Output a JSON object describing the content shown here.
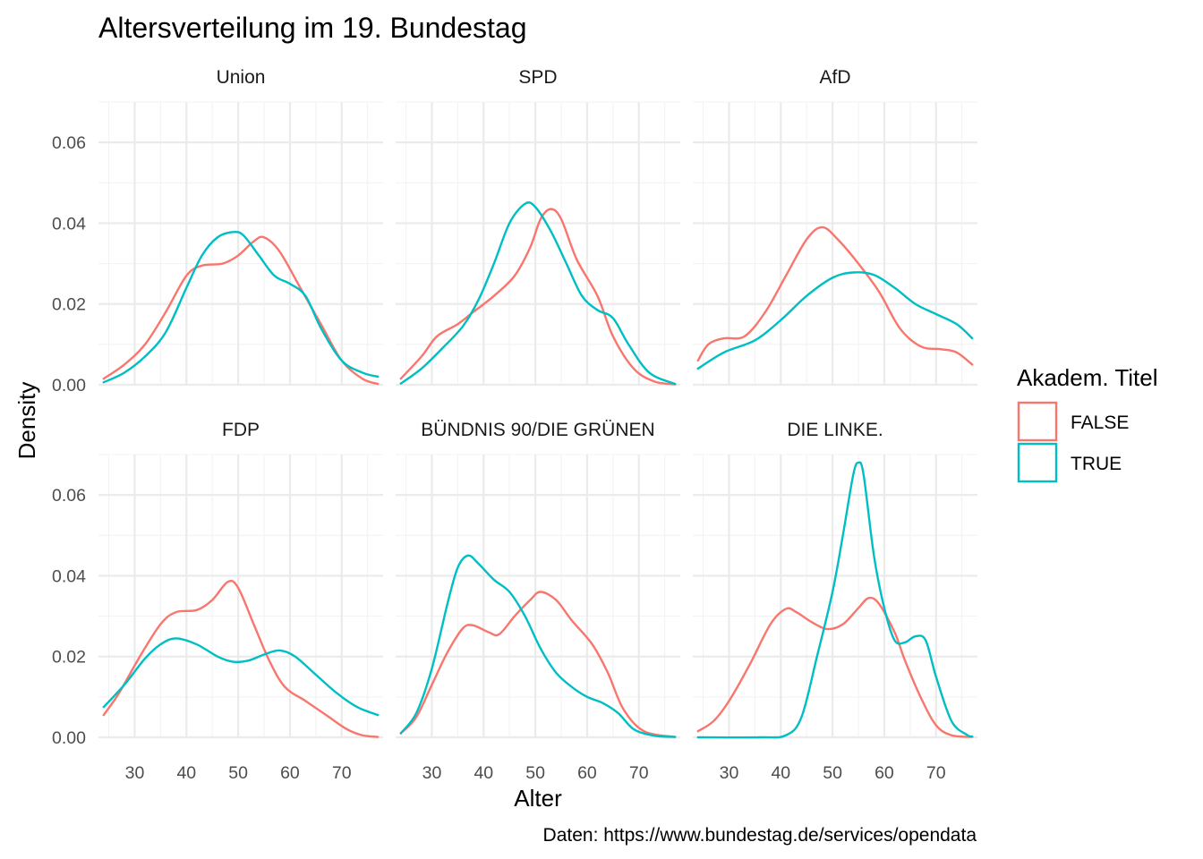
{
  "title": "Altersverteilung im 19. Bundestag",
  "caption": "Daten: https://www.bundestag.de/services/opendata",
  "colors": {
    "FALSE": "#F8766D",
    "TRUE": "#00BFC4"
  },
  "legend": {
    "title": "Akadem. Titel",
    "items": [
      "FALSE",
      "TRUE"
    ]
  },
  "chart_data": {
    "type": "line",
    "xlabel": "Alter",
    "ylabel": "Density",
    "xlim": [
      23,
      78
    ],
    "ylim": [
      0,
      0.07
    ],
    "x_ticks": [
      30,
      40,
      50,
      60,
      70
    ],
    "y_ticks": [
      0.0,
      0.02,
      0.04,
      0.06
    ],
    "y_tick_labels": [
      "0.00",
      "0.02",
      "0.04",
      "0.06"
    ],
    "grid": true,
    "legend_position": "right",
    "facets": [
      {
        "name": "Union",
        "series": [
          {
            "name": "FALSE",
            "points": [
              [
                24,
                0.0015
              ],
              [
                28,
                0.005
              ],
              [
                32,
                0.01
              ],
              [
                36,
                0.018
              ],
              [
                40,
                0.027
              ],
              [
                43,
                0.0295
              ],
              [
                47,
                0.03
              ],
              [
                50,
                0.032
              ],
              [
                53,
                0.0355
              ],
              [
                55,
                0.0365
              ],
              [
                58,
                0.033
              ],
              [
                62,
                0.024
              ],
              [
                66,
                0.015
              ],
              [
                70,
                0.006
              ],
              [
                74,
                0.0015
              ],
              [
                77,
                0.0002
              ]
            ]
          },
          {
            "name": "TRUE",
            "points": [
              [
                24,
                0.0006
              ],
              [
                28,
                0.003
              ],
              [
                32,
                0.007
              ],
              [
                36,
                0.013
              ],
              [
                40,
                0.024
              ],
              [
                43,
                0.032
              ],
              [
                46,
                0.0365
              ],
              [
                49,
                0.0378
              ],
              [
                51,
                0.037
              ],
              [
                54,
                0.032
              ],
              [
                57,
                0.027
              ],
              [
                60,
                0.025
              ],
              [
                63,
                0.022
              ],
              [
                66,
                0.014
              ],
              [
                70,
                0.006
              ],
              [
                74,
                0.003
              ],
              [
                77,
                0.002
              ]
            ]
          }
        ]
      },
      {
        "name": "SPD",
        "series": [
          {
            "name": "FALSE",
            "points": [
              [
                24,
                0.0015
              ],
              [
                28,
                0.007
              ],
              [
                31,
                0.012
              ],
              [
                35,
                0.015
              ],
              [
                38,
                0.018
              ],
              [
                42,
                0.022
              ],
              [
                46,
                0.027
              ],
              [
                49,
                0.034
              ],
              [
                51,
                0.041
              ],
              [
                53,
                0.0435
              ],
              [
                55,
                0.041
              ],
              [
                58,
                0.031
              ],
              [
                62,
                0.022
              ],
              [
                65,
                0.012
              ],
              [
                69,
                0.004
              ],
              [
                73,
                0.0008
              ],
              [
                77,
                0.0001
              ]
            ]
          },
          {
            "name": "TRUE",
            "points": [
              [
                24,
                0.0003
              ],
              [
                28,
                0.004
              ],
              [
                32,
                0.009
              ],
              [
                36,
                0.0145
              ],
              [
                39,
                0.021
              ],
              [
                42,
                0.03
              ],
              [
                45,
                0.04
              ],
              [
                48,
                0.0448
              ],
              [
                50,
                0.044
              ],
              [
                53,
                0.038
              ],
              [
                56,
                0.03
              ],
              [
                59,
                0.022
              ],
              [
                62,
                0.0185
              ],
              [
                65,
                0.0165
              ],
              [
                68,
                0.01
              ],
              [
                72,
                0.003
              ],
              [
                77,
                0.0002
              ]
            ]
          }
        ]
      },
      {
        "name": "AfD",
        "series": [
          {
            "name": "FALSE",
            "points": [
              [
                24,
                0.006
              ],
              [
                26,
                0.01
              ],
              [
                29,
                0.0115
              ],
              [
                33,
                0.012
              ],
              [
                37,
                0.018
              ],
              [
                41,
                0.027
              ],
              [
                45,
                0.036
              ],
              [
                48,
                0.039
              ],
              [
                51,
                0.036
              ],
              [
                55,
                0.03
              ],
              [
                59,
                0.023
              ],
              [
                63,
                0.014
              ],
              [
                67,
                0.0095
              ],
              [
                71,
                0.0088
              ],
              [
                74,
                0.008
              ],
              [
                77,
                0.005
              ]
            ]
          },
          {
            "name": "TRUE",
            "points": [
              [
                24,
                0.004
              ],
              [
                29,
                0.008
              ],
              [
                35,
                0.011
              ],
              [
                40,
                0.016
              ],
              [
                45,
                0.022
              ],
              [
                50,
                0.0265
              ],
              [
                54,
                0.0278
              ],
              [
                58,
                0.0272
              ],
              [
                62,
                0.024
              ],
              [
                66,
                0.02
              ],
              [
                70,
                0.0175
              ],
              [
                74,
                0.015
              ],
              [
                77,
                0.0115
              ]
            ]
          }
        ]
      },
      {
        "name": "FDP",
        "series": [
          {
            "name": "FALSE",
            "points": [
              [
                24,
                0.0055
              ],
              [
                27,
                0.011
              ],
              [
                31,
                0.02
              ],
              [
                35,
                0.028
              ],
              [
                38,
                0.031
              ],
              [
                42,
                0.0315
              ],
              [
                45,
                0.034
              ],
              [
                48,
                0.0385
              ],
              [
                50,
                0.037
              ],
              [
                53,
                0.028
              ],
              [
                56,
                0.019
              ],
              [
                59,
                0.0125
              ],
              [
                63,
                0.009
              ],
              [
                67,
                0.0055
              ],
              [
                71,
                0.002
              ],
              [
                74,
                0.0005
              ],
              [
                77,
                0.0001
              ]
            ]
          },
          {
            "name": "TRUE",
            "points": [
              [
                24,
                0.0075
              ],
              [
                28,
                0.013
              ],
              [
                32,
                0.0195
              ],
              [
                35,
                0.023
              ],
              [
                38,
                0.0245
              ],
              [
                42,
                0.023
              ],
              [
                46,
                0.02
              ],
              [
                49,
                0.0187
              ],
              [
                52,
                0.019
              ],
              [
                55,
                0.0205
              ],
              [
                58,
                0.0215
              ],
              [
                61,
                0.02
              ],
              [
                65,
                0.0155
              ],
              [
                69,
                0.011
              ],
              [
                73,
                0.0075
              ],
              [
                77,
                0.0055
              ]
            ]
          }
        ]
      },
      {
        "name": "BÜNDNIS 90/DIE GRÜNEN",
        "series": [
          {
            "name": "FALSE",
            "points": [
              [
                24,
                0.001
              ],
              [
                27,
                0.005
              ],
              [
                30,
                0.013
              ],
              [
                33,
                0.021
              ],
              [
                36,
                0.027
              ],
              [
                38,
                0.0277
              ],
              [
                41,
                0.026
              ],
              [
                43,
                0.0255
              ],
              [
                46,
                0.03
              ],
              [
                49,
                0.034
              ],
              [
                51,
                0.036
              ],
              [
                54,
                0.034
              ],
              [
                57,
                0.029
              ],
              [
                61,
                0.023
              ],
              [
                64,
                0.016
              ],
              [
                67,
                0.007
              ],
              [
                71,
                0.0015
              ],
              [
                77,
                0.0001
              ]
            ]
          },
          {
            "name": "TRUE",
            "points": [
              [
                24,
                0.001
              ],
              [
                27,
                0.006
              ],
              [
                30,
                0.017
              ],
              [
                33,
                0.033
              ],
              [
                35,
                0.042
              ],
              [
                37,
                0.045
              ],
              [
                39,
                0.043
              ],
              [
                42,
                0.039
              ],
              [
                45,
                0.036
              ],
              [
                48,
                0.03
              ],
              [
                51,
                0.022
              ],
              [
                54,
                0.016
              ],
              [
                57,
                0.0125
              ],
              [
                60,
                0.01
              ],
              [
                63,
                0.0085
              ],
              [
                66,
                0.006
              ],
              [
                69,
                0.002
              ],
              [
                73,
                0.0004
              ],
              [
                77,
                0.0001
              ]
            ]
          }
        ]
      },
      {
        "name": "DIE LINKE.",
        "series": [
          {
            "name": "FALSE",
            "points": [
              [
                24,
                0.0015
              ],
              [
                27,
                0.004
              ],
              [
                30,
                0.009
              ],
              [
                34,
                0.018
              ],
              [
                38,
                0.028
              ],
              [
                41,
                0.0318
              ],
              [
                43,
                0.031
              ],
              [
                46,
                0.0285
              ],
              [
                49,
                0.0268
              ],
              [
                52,
                0.028
              ],
              [
                55,
                0.032
              ],
              [
                57,
                0.0345
              ],
              [
                59,
                0.033
              ],
              [
                62,
                0.026
              ],
              [
                64,
                0.019
              ],
              [
                67,
                0.01
              ],
              [
                70,
                0.003
              ],
              [
                73,
                0.0005
              ],
              [
                77,
                0.0001
              ]
            ]
          },
          {
            "name": "TRUE",
            "points": [
              [
                24,
                0.0
              ],
              [
                36,
                0.0
              ],
              [
                41,
                0.0005
              ],
              [
                44,
                0.005
              ],
              [
                47,
                0.02
              ],
              [
                50,
                0.036
              ],
              [
                52,
                0.05
              ],
              [
                54,
                0.065
              ],
              [
                55,
                0.068
              ],
              [
                56,
                0.065
              ],
              [
                58,
                0.045
              ],
              [
                60,
                0.032
              ],
              [
                62,
                0.024
              ],
              [
                64,
                0.0235
              ],
              [
                66,
                0.025
              ],
              [
                68,
                0.024
              ],
              [
                70,
                0.015
              ],
              [
                73,
                0.004
              ],
              [
                76,
                0.0006
              ],
              [
                77,
                0.0002
              ]
            ]
          }
        ]
      }
    ]
  }
}
